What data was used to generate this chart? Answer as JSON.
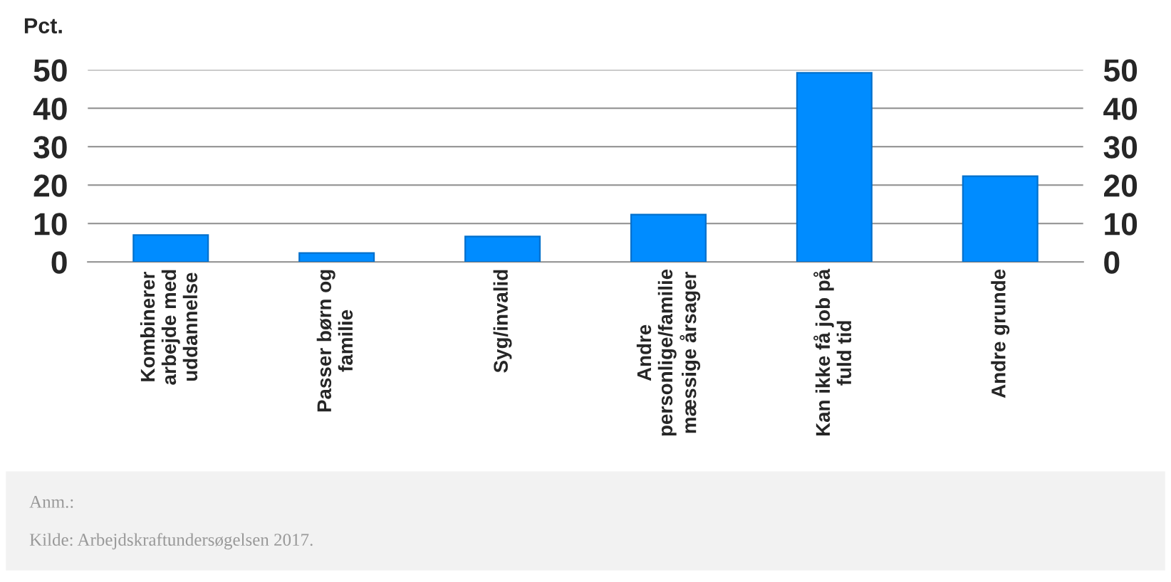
{
  "chart_data": {
    "type": "bar",
    "ylabel": "Pct.",
    "categories": [
      "Kombinerer\narbejde med\nuddannelse",
      "Passer børn og\nfamilie",
      "Syg/invalid",
      "Andre\npersonlige/familie\nmæssige årsager",
      "Kan ikke få job på\nfuld tid",
      "Andre grunde"
    ],
    "values": [
      7.0,
      2.3,
      6.6,
      12.3,
      49.2,
      22.3
    ],
    "color": "#008cff",
    "ylim": [
      0,
      50
    ],
    "yticks": [
      0,
      10,
      20,
      30,
      40,
      50
    ],
    "y2lim": [
      0,
      50
    ],
    "y2ticks": [
      0,
      10,
      20,
      30,
      40,
      50
    ],
    "grid": "y",
    "legend": false,
    "annotations": [
      "Anm.:",
      "Kilde: Arbejdskraftundersøgelsen 2017."
    ]
  }
}
